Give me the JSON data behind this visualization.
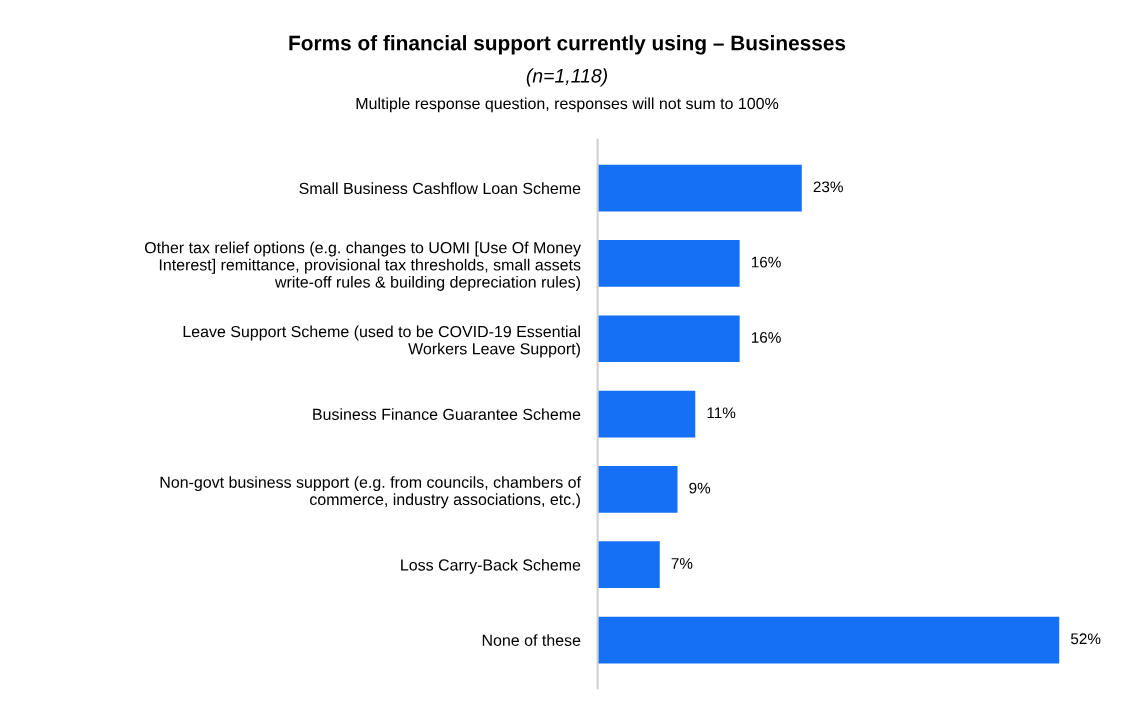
{
  "chart_data": {
    "type": "bar",
    "orientation": "horizontal",
    "title": "Forms of financial support currently using – Businesses",
    "subtitle": "(n=1,118)",
    "annotations": [
      "Multiple response question, responses will not sum to 100%"
    ],
    "categories": [
      "Small Business Cashflow Loan Scheme",
      "Other tax relief options (e.g. changes to UOMI [Use Of Money\nInterest] remittance, provisional tax thresholds, small assets\nwrite-off rules & building depreciation rules)",
      "Leave Support Scheme (used to be COVID-19 Essential\nWorkers Leave Support)",
      "Business Finance Guarantee Scheme",
      "Non-govt business support (e.g. from councils, chambers of\ncommerce, industry associations, etc.)",
      "Loss Carry-Back Scheme",
      "None of these"
    ],
    "values": [
      23,
      16,
      16,
      11,
      9,
      7,
      52
    ],
    "value_labels": [
      "23%",
      "16%",
      "16%",
      "11%",
      "9%",
      "7%",
      "52%"
    ],
    "color": "#1670f5",
    "grid": false,
    "legend": false,
    "tick_labels": "y"
  }
}
